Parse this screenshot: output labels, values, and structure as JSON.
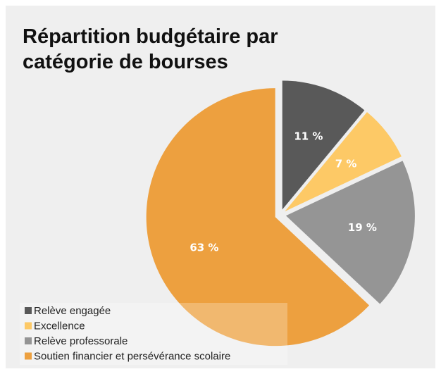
{
  "chart_data": {
    "type": "pie",
    "title": "Répartition budgétaire par catégorie de bourses",
    "categories": [
      "Relève engagée",
      "Excellence",
      "Relève professorale",
      "Soutien financier et persévérance scolaire"
    ],
    "values": [
      11,
      7,
      19,
      63
    ],
    "value_labels": [
      "11 %",
      "7 %",
      "19 %",
      "63 %"
    ],
    "colors": [
      "#595959",
      "#fdc966",
      "#959595",
      "#eda03f"
    ],
    "legend": "lower left"
  }
}
